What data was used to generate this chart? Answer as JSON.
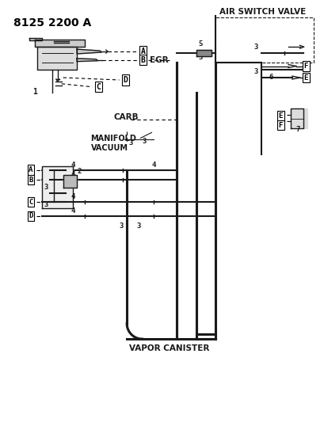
{
  "title": "8125 2200 A",
  "bg_color": "#ffffff",
  "line_color": "#1a1a1a",
  "label_color": "#000000",
  "labels": {
    "air_switch_valve": "AIR SWITCH VALVE",
    "egr": "EGR",
    "carb": "CARB",
    "manifold_vacuum": "MANIFOLD\nVACUUM",
    "vapor_canister": "VAPOR CANISTER",
    "part_num": "8125 2200 A"
  },
  "box_labels": [
    "A",
    "B",
    "C",
    "D",
    "E",
    "F"
  ],
  "number_labels": [
    "1",
    "2",
    "3",
    "4",
    "5",
    "6",
    "7"
  ]
}
